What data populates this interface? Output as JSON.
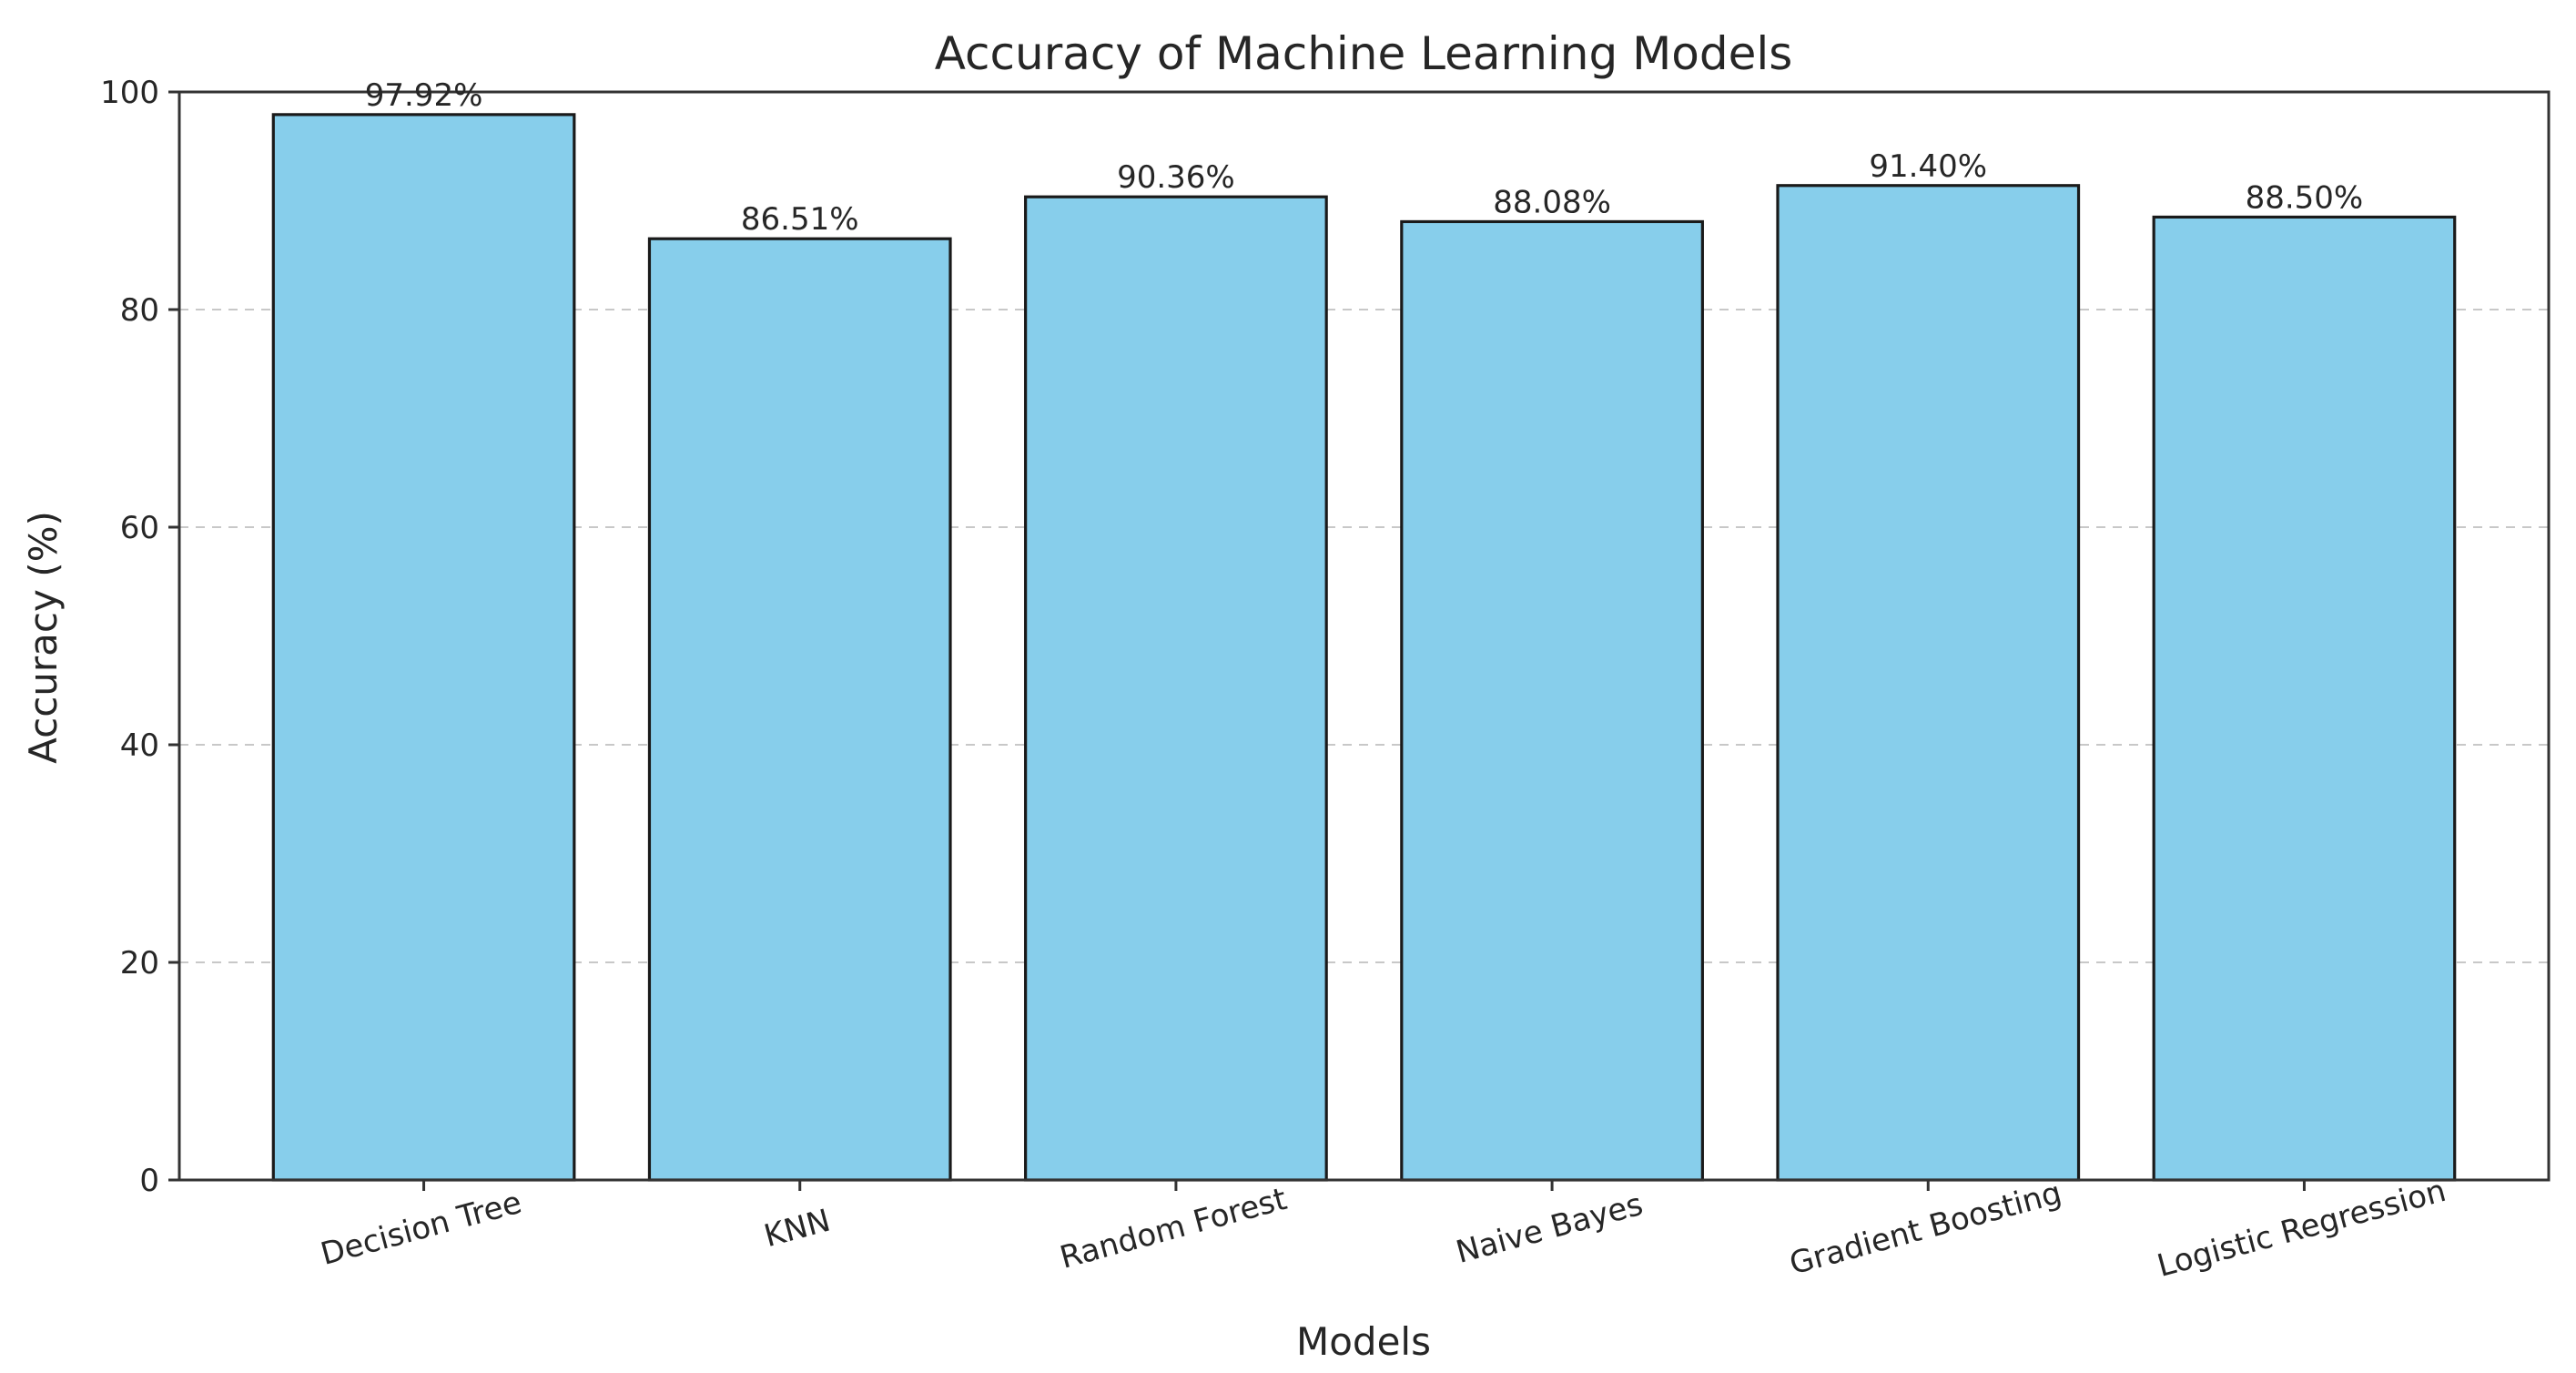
{
  "chart_data": {
    "type": "bar",
    "title": "Accuracy of Machine Learning Models",
    "xlabel": "Models",
    "ylabel": "Accuracy (%)",
    "categories": [
      "Decision Tree",
      "KNN",
      "Random Forest",
      "Naive Bayes",
      "Gradient Boosting",
      "Logistic Regression"
    ],
    "values": [
      97.92,
      86.51,
      90.36,
      88.08,
      91.4,
      88.5
    ],
    "data_labels": [
      "97.92%",
      "86.51%",
      "90.36%",
      "88.08%",
      "91.40%",
      "88.50%"
    ],
    "ylim": [
      0,
      100
    ],
    "yticks": [
      0,
      20,
      40,
      60,
      80,
      100
    ],
    "ytick_labels": [
      "0",
      "20",
      "40",
      "60",
      "80",
      "100"
    ],
    "grid": "y-dashed",
    "legend": "none",
    "bar_color": "#87ceeb",
    "edge_color": "#1a1a1a",
    "x_tick_rotation_deg": -15
  }
}
